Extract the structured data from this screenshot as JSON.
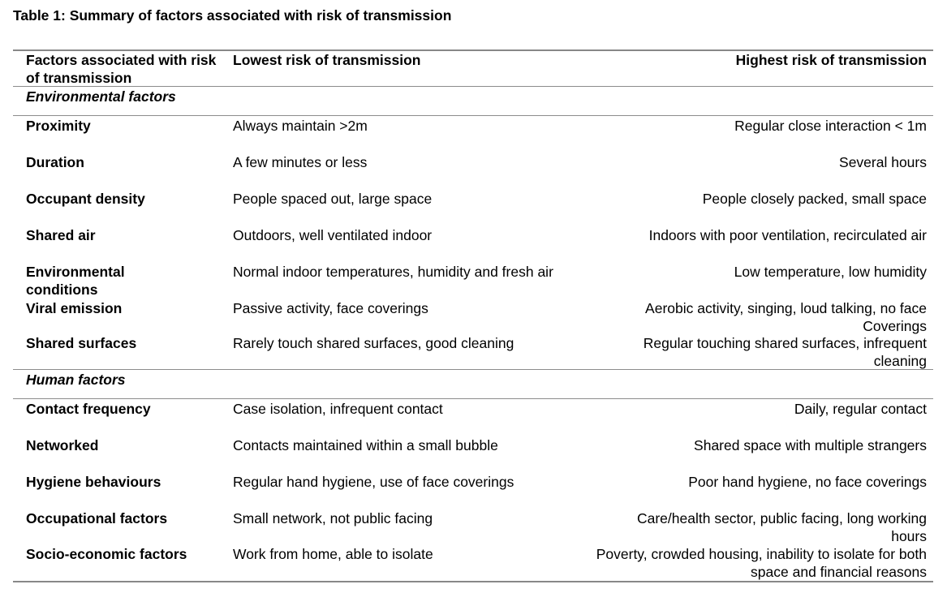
{
  "caption": "Table 1: Summary of factors associated with risk of transmission",
  "header": {
    "factor": "Factors associated with risk of transmission",
    "lowest": "Lowest risk of transmission",
    "highest": "Highest risk of transmission"
  },
  "sections": [
    {
      "title": "Environmental factors",
      "rows": [
        {
          "factor": "Proximity",
          "lowest": "Always maintain >2m",
          "highest": "Regular close interaction < 1m"
        },
        {
          "factor": "Duration",
          "lowest": "A few minutes or less",
          "highest": "Several hours"
        },
        {
          "factor": "Occupant density",
          "lowest": "People spaced out, large space",
          "highest": "People closely packed, small space"
        },
        {
          "factor": "Shared air",
          "lowest": "Outdoors, well ventilated indoor",
          "highest": "Indoors with poor ventilation, recirculated air"
        },
        {
          "factor": "Environmental conditions",
          "lowest": "Normal indoor temperatures, humidity and fresh air",
          "highest": "Low temperature, low humidity"
        },
        {
          "factor": "Viral emission",
          "lowest": "Passive activity, face coverings",
          "highest": "Aerobic activity, singing, loud talking, no face Coverings"
        },
        {
          "factor": "Shared surfaces",
          "lowest": "Rarely touch shared surfaces, good cleaning",
          "highest": "Regular touching shared surfaces, infrequent cleaning"
        }
      ]
    },
    {
      "title": "Human factors",
      "rows": [
        {
          "factor": "Contact frequency",
          "lowest": "Case isolation, infrequent contact",
          "highest": "Daily, regular contact"
        },
        {
          "factor": "Networked",
          "lowest": "Contacts maintained within a small bubble",
          "highest": "Shared space with multiple strangers"
        },
        {
          "factor": "Hygiene behaviours",
          "lowest": "Regular hand hygiene, use of face coverings",
          "highest": "Poor hand hygiene, no face coverings"
        },
        {
          "factor": "Occupational factors",
          "lowest": "Small network, not public facing",
          "highest": "Care/health sector, public facing, long working hours"
        },
        {
          "factor": "Socio-economic factors",
          "lowest": "Work from home, able to isolate",
          "highest": "Poverty, crowded housing, inability to isolate for both space and financial reasons"
        }
      ]
    }
  ]
}
